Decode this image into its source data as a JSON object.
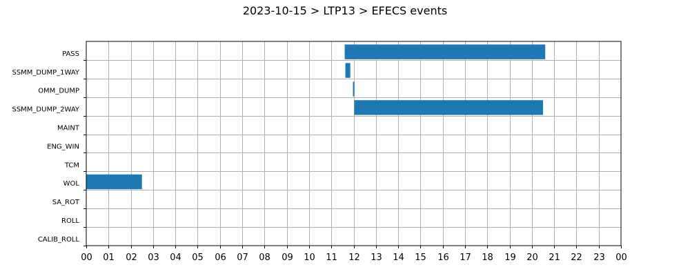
{
  "chart_data": {
    "type": "gantt",
    "title": "2023-10-15 > LTP13 > EFECS events",
    "x_range_hours": [
      0,
      24
    ],
    "x_tick_labels": [
      "00",
      "01",
      "02",
      "03",
      "04",
      "05",
      "06",
      "07",
      "08",
      "09",
      "10",
      "11",
      "12",
      "13",
      "14",
      "15",
      "16",
      "17",
      "18",
      "19",
      "20",
      "21",
      "22",
      "23",
      "00"
    ],
    "categories": [
      "PASS",
      "SSMM_DUMP_1WAY",
      "OMM_DUMP",
      "SSMM_DUMP_2WAY",
      "MAINT",
      "ENG_WIN",
      "TCM",
      "WOL",
      "SA_ROT",
      "ROLL",
      "CALIB_ROLL"
    ],
    "events": [
      {
        "category": "PASS",
        "start": 11.6,
        "end": 20.6
      },
      {
        "category": "SSMM_DUMP_1WAY",
        "start": 11.63,
        "end": 11.85
      },
      {
        "category": "OMM_DUMP",
        "start": 11.97,
        "end": 12.03
      },
      {
        "category": "SSMM_DUMP_2WAY",
        "start": 12.03,
        "end": 20.5
      },
      {
        "category": "WOL",
        "start": 0.0,
        "end": 2.5
      }
    ],
    "bar_color": "#1f77b4",
    "grid": true
  }
}
